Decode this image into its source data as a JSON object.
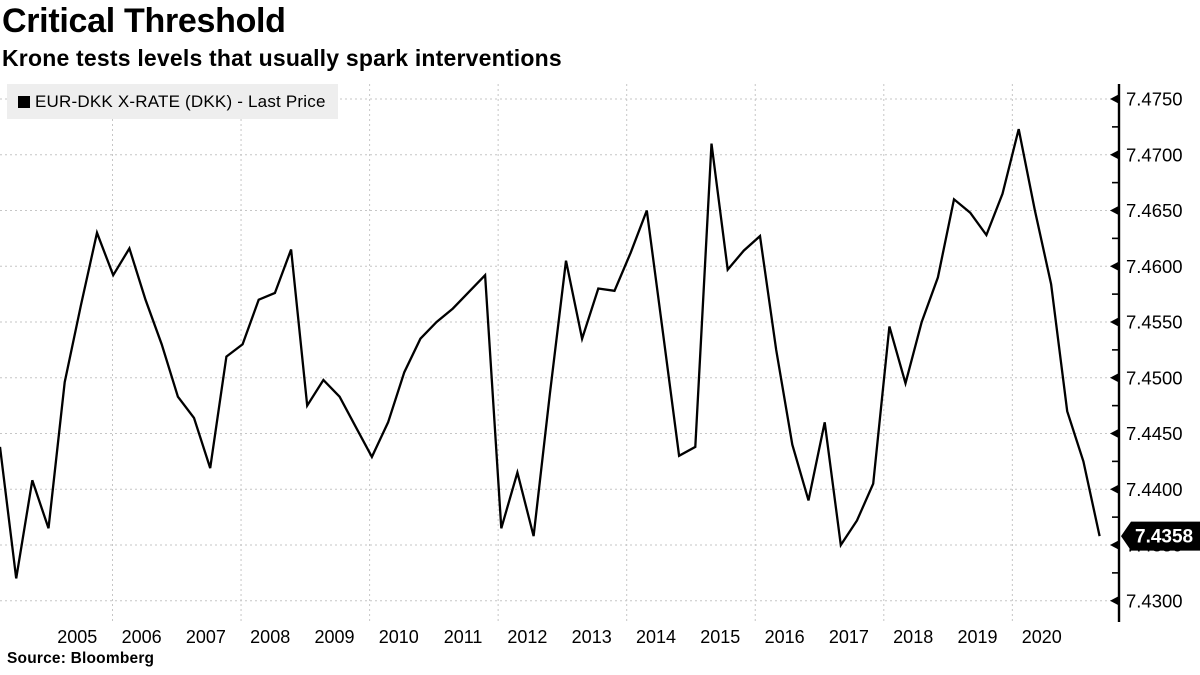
{
  "header": {
    "title": "Critical Threshold",
    "subtitle": "Krone tests levels that usually spark interventions"
  },
  "legend": {
    "label": "EUR-DKK X-RATE (DKK) - Last Price",
    "swatch_color": "#000000"
  },
  "footer": {
    "source": "Source: Bloomberg"
  },
  "last_price_badge": {
    "value": "7.4358",
    "bg_color": "#000000",
    "text_color": "#ffffff"
  },
  "chart_data": {
    "type": "line",
    "title": "Critical Threshold",
    "subtitle": "Krone tests levels that usually spark interventions",
    "source": "Source: Bloomberg",
    "grid": true,
    "legend_position": "top-left",
    "x_tick_years": [
      2005,
      2006,
      2007,
      2008,
      2009,
      2010,
      2011,
      2012,
      2013,
      2014,
      2015,
      2016,
      2017,
      2018,
      2019,
      2020
    ],
    "y_ticks": [
      7.43,
      7.435,
      7.44,
      7.445,
      7.45,
      7.455,
      7.46,
      7.465,
      7.47,
      7.475
    ],
    "y_minor_ticks": [
      7.4325,
      7.4375,
      7.4425,
      7.4475,
      7.4525,
      7.4575,
      7.4625,
      7.4675,
      7.4725
    ],
    "ylim": [
      7.4281,
      7.4763
    ],
    "last_price": 7.4358,
    "series": [
      {
        "name": "EUR-DKK X-RATE (DKK) - Last Price",
        "color": "#000000",
        "start_period": "2003-Q4",
        "end_period": "2020-Q4",
        "interval": "quarterly",
        "values": [
          7.4438,
          7.432,
          7.4408,
          7.4365,
          7.4496,
          7.4565,
          7.463,
          7.4592,
          7.4616,
          7.457,
          7.453,
          7.4483,
          7.4464,
          7.4419,
          7.4519,
          7.453,
          7.457,
          7.4576,
          7.4615,
          7.4475,
          7.4498,
          7.4483,
          7.4456,
          7.4429,
          7.446,
          7.4505,
          7.4535,
          7.455,
          7.4562,
          7.4577,
          7.4592,
          7.4365,
          7.4415,
          7.4358,
          7.4485,
          7.4605,
          7.4535,
          7.458,
          7.4578,
          7.4612,
          7.465,
          7.454,
          7.443,
          7.4438,
          7.471,
          7.4597,
          7.4614,
          7.4627,
          7.4525,
          7.444,
          7.439,
          7.446,
          7.435,
          7.4372,
          7.4405,
          7.4546,
          7.4495,
          7.455,
          7.459,
          7.466,
          7.4648,
          7.4628,
          7.4665,
          7.4723,
          7.465,
          7.4584,
          7.447,
          7.4425,
          7.4358
        ]
      }
    ]
  }
}
